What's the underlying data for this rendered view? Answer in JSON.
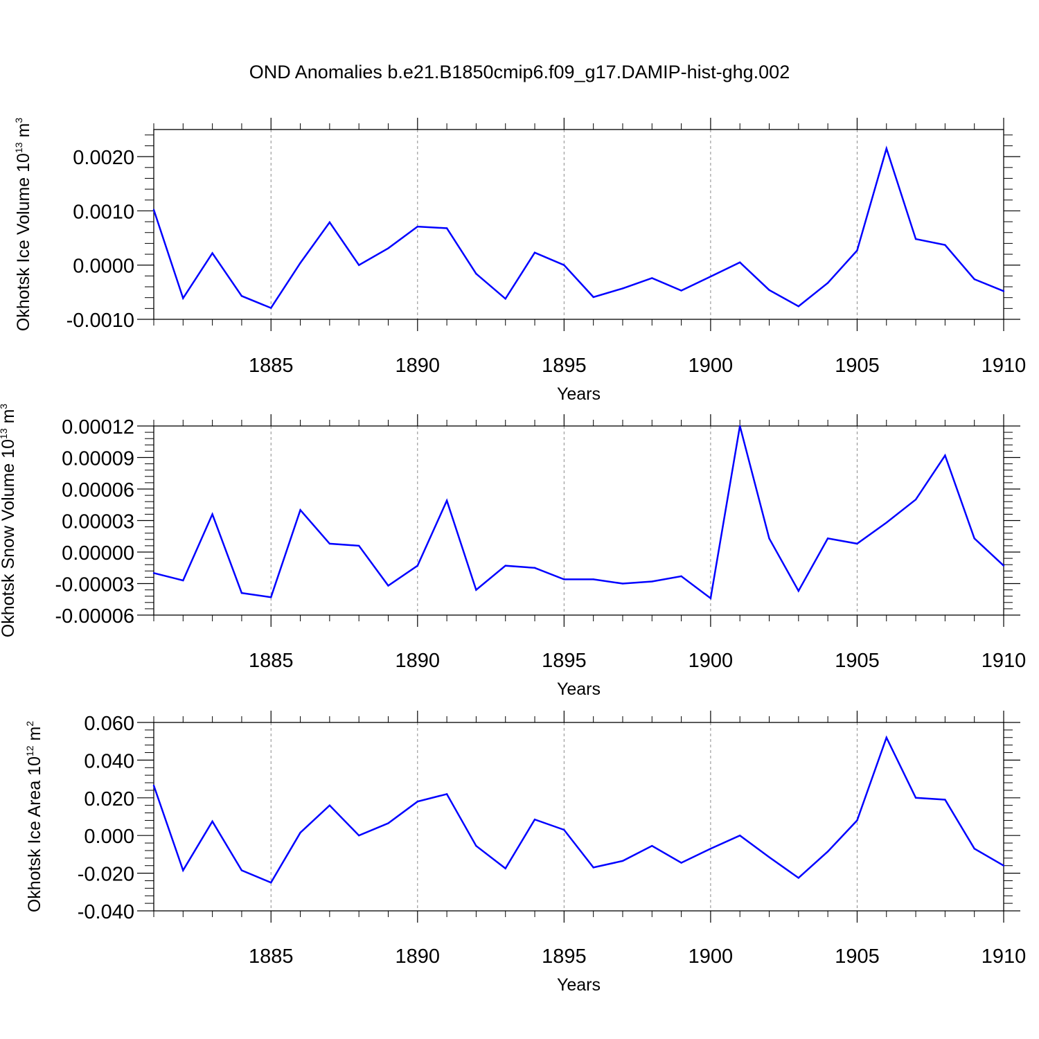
{
  "chart_data": {
    "type": "line",
    "title": "OND Anomalies b.e21.B1850cmip6.f09_g17.DAMIP-hist-ghg.002",
    "line_color": "#0000ff",
    "x": [
      1881,
      1882,
      1883,
      1884,
      1885,
      1886,
      1887,
      1888,
      1889,
      1890,
      1891,
      1892,
      1893,
      1894,
      1895,
      1896,
      1897,
      1898,
      1899,
      1900,
      1901,
      1902,
      1903,
      1904,
      1905,
      1906,
      1907,
      1908,
      1909,
      1910
    ],
    "xlim": [
      1881,
      1910
    ],
    "x_grid": [
      1885,
      1890,
      1895,
      1900,
      1905,
      1910
    ],
    "panels": [
      {
        "name": "ice-volume",
        "ylabel_main": "Okhotsk Ice Volume 10",
        "ylabel_exp": "13",
        "ylabel_unit": " m",
        "ylabel_unit_exp": "3",
        "xlabel": "Years",
        "ylim": [
          -0.001,
          0.0025
        ],
        "yticks": [
          -0.001,
          0.0,
          0.001,
          0.002
        ],
        "ytick_labels": [
          "-0.0010",
          "0.0000",
          "0.0010",
          "0.0020"
        ],
        "xtick_labels": [
          "1885",
          "1890",
          "1895",
          "1900",
          "1905",
          "1910"
        ],
        "values": [
          0.00102,
          -0.00061,
          0.00022,
          -0.00057,
          -0.00079,
          4e-05,
          0.00079,
          0.0,
          0.00031,
          0.00071,
          0.00068,
          -0.00016,
          -0.00062,
          0.00023,
          0.0,
          -0.00059,
          -0.00043,
          -0.00024,
          -0.00047,
          -0.00021,
          5e-05,
          -0.00046,
          -0.00076,
          -0.00033,
          0.00027,
          0.00215,
          0.00048,
          0.00037,
          -0.00026,
          -0.00048
        ]
      },
      {
        "name": "snow-volume",
        "ylabel_main": "Okhotsk Snow Volume 10",
        "ylabel_exp": "13",
        "ylabel_unit": " m",
        "ylabel_unit_exp": "3",
        "xlabel": "Years",
        "ylim": [
          -6e-05,
          0.00012
        ],
        "yticks": [
          -6e-05,
          -3e-05,
          0.0,
          3e-05,
          6e-05,
          9e-05,
          0.00012
        ],
        "ytick_labels": [
          "-0.00006",
          "-0.00003",
          "0.00000",
          "0.00003",
          "0.00006",
          "0.00009",
          "0.00012"
        ],
        "xtick_labels": [
          "1885",
          "1890",
          "1895",
          "1900",
          "1905",
          "1910"
        ],
        "values": [
          -2e-05,
          -2.7e-05,
          3.6e-05,
          -3.9e-05,
          -4.3e-05,
          4e-05,
          8e-06,
          6e-06,
          -3.2e-05,
          -1.3e-05,
          4.9e-05,
          -3.6e-05,
          -1.3e-05,
          -1.5e-05,
          -2.6e-05,
          -2.6e-05,
          -3e-05,
          -2.8e-05,
          -2.3e-05,
          -4.4e-05,
          0.00012,
          1.3e-05,
          -3.7e-05,
          1.3e-05,
          8e-06,
          2.8e-05,
          5e-05,
          9.2e-05,
          1.3e-05,
          -1.3e-05
        ]
      },
      {
        "name": "ice-area",
        "ylabel_main": "Okhotsk Ice Area 10",
        "ylabel_exp": "12",
        "ylabel_unit": " m",
        "ylabel_unit_exp": "2",
        "xlabel": "Years",
        "ylim": [
          -0.04,
          0.06
        ],
        "yticks": [
          -0.04,
          -0.02,
          0.0,
          0.02,
          0.04,
          0.06
        ],
        "ytick_labels": [
          "-0.040",
          "-0.020",
          "0.000",
          "0.020",
          "0.040",
          "0.060"
        ],
        "xtick_labels": [
          "1885",
          "1890",
          "1895",
          "1900",
          "1905",
          "1910"
        ],
        "values": [
          0.0265,
          -0.0185,
          0.0075,
          -0.0185,
          -0.025,
          0.0015,
          0.016,
          0.0,
          0.0065,
          0.018,
          0.022,
          -0.0055,
          -0.0175,
          0.0085,
          0.003,
          -0.017,
          -0.0135,
          -0.0055,
          -0.0145,
          -0.007,
          0.0,
          -0.0115,
          -0.0225,
          -0.0085,
          0.008,
          0.052,
          0.02,
          0.019,
          -0.007,
          -0.016
        ]
      }
    ]
  }
}
